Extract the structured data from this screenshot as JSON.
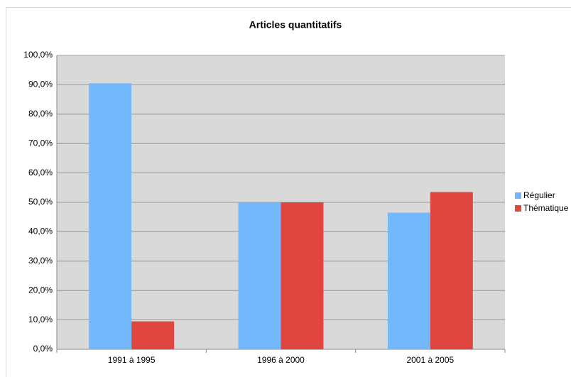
{
  "chart_data": {
    "type": "bar",
    "title": "Articles quantitatifs",
    "categories": [
      "1991 à 1995",
      "1996 à 2000",
      "2001 à 2005"
    ],
    "series": [
      {
        "name": "Régulier",
        "color": "#74b8fc",
        "values": [
          90.5,
          50,
          46.5
        ]
      },
      {
        "name": "Thématique",
        "color": "#e0463f",
        "values": [
          9.5,
          50,
          53.5
        ]
      }
    ],
    "ylim": [
      0,
      100
    ],
    "yticks": [
      {
        "value": 0,
        "label": "0,0%"
      },
      {
        "value": 10,
        "label": "10,0%"
      },
      {
        "value": 20,
        "label": "20,0%"
      },
      {
        "value": 30,
        "label": "30,0%"
      },
      {
        "value": 40,
        "label": "40,0%"
      },
      {
        "value": 50,
        "label": "50,0%"
      },
      {
        "value": 60,
        "label": "60,0%"
      },
      {
        "value": 70,
        "label": "70,0%"
      },
      {
        "value": 80,
        "label": "80,0%"
      },
      {
        "value": 90,
        "label": "90,0%"
      },
      {
        "value": 100,
        "label": "100,0%"
      }
    ],
    "grid": true,
    "legend": "right",
    "plot_background": "#d9d9d9"
  }
}
